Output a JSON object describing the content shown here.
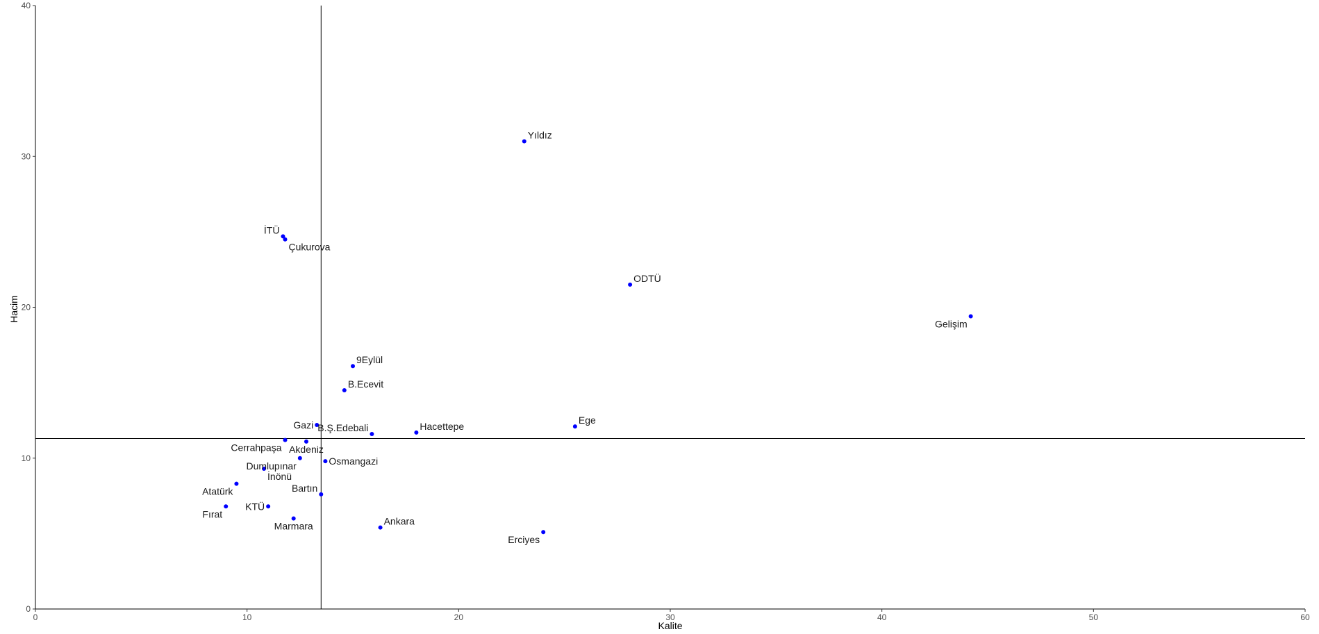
{
  "chart_data": {
    "type": "scatter",
    "title": "",
    "xlabel": "Kalite",
    "ylabel": "Hacim",
    "xlim": [
      0,
      60
    ],
    "ylim": [
      0,
      40
    ],
    "x_ticks": [
      0,
      10,
      20,
      30,
      40,
      50,
      60
    ],
    "y_ticks": [
      0,
      10,
      20,
      30,
      40
    ],
    "grid": false,
    "point_color": "#0000ff",
    "reference_lines": {
      "x": 13.5,
      "y": 11.3
    },
    "points": [
      {
        "label": "Yıldız",
        "x": 23.1,
        "y": 31.0,
        "anchor": "start",
        "pos": "above"
      },
      {
        "label": "İTÜ",
        "x": 11.7,
        "y": 24.7,
        "anchor": "end",
        "pos": "above"
      },
      {
        "label": "Çukurova",
        "x": 11.8,
        "y": 24.5,
        "anchor": "start",
        "pos": "below"
      },
      {
        "label": "ODTÜ",
        "x": 28.1,
        "y": 21.5,
        "anchor": "start",
        "pos": "above"
      },
      {
        "label": "Gelişim",
        "x": 44.2,
        "y": 19.4,
        "anchor": "end",
        "pos": "below"
      },
      {
        "label": "9Eylül",
        "x": 15.0,
        "y": 16.1,
        "anchor": "start",
        "pos": "above"
      },
      {
        "label": "B.Ecevit",
        "x": 14.6,
        "y": 14.5,
        "anchor": "start",
        "pos": "above"
      },
      {
        "label": "Gazi",
        "x": 13.3,
        "y": 12.2,
        "anchor": "end",
        "pos": "mid"
      },
      {
        "label": "B.Ş.Edebali",
        "x": 15.9,
        "y": 11.6,
        "anchor": "end",
        "pos": "above"
      },
      {
        "label": "Hacettepe",
        "x": 18.0,
        "y": 11.7,
        "anchor": "start",
        "pos": "above"
      },
      {
        "label": "Ege",
        "x": 25.5,
        "y": 12.1,
        "anchor": "start",
        "pos": "above"
      },
      {
        "label": "Cerrahpaşa",
        "x": 11.8,
        "y": 11.2,
        "anchor": "end",
        "pos": "below"
      },
      {
        "label": "Akdeniz",
        "x": 12.8,
        "y": 11.1,
        "anchor": "middle",
        "pos": "below"
      },
      {
        "label": "Dumlupınar",
        "x": 12.5,
        "y": 10.0,
        "anchor": "end",
        "pos": "below"
      },
      {
        "label": "İnönü",
        "x": 10.8,
        "y": 9.3,
        "anchor": "start",
        "pos": "below"
      },
      {
        "label": "Osmangazi",
        "x": 13.7,
        "y": 9.8,
        "anchor": "start",
        "pos": "mid"
      },
      {
        "label": "Atatürk",
        "x": 9.5,
        "y": 8.3,
        "anchor": "end",
        "pos": "below"
      },
      {
        "label": "Bartın",
        "x": 13.5,
        "y": 7.6,
        "anchor": "end",
        "pos": "above"
      },
      {
        "label": "KTÜ",
        "x": 11.0,
        "y": 6.8,
        "anchor": "end",
        "pos": "mid"
      },
      {
        "label": "Fırat",
        "x": 9.0,
        "y": 6.8,
        "anchor": "end",
        "pos": "below"
      },
      {
        "label": "Marmara",
        "x": 12.2,
        "y": 6.0,
        "anchor": "middle",
        "pos": "below"
      },
      {
        "label": "Ankara",
        "x": 16.3,
        "y": 5.4,
        "anchor": "start",
        "pos": "above"
      },
      {
        "label": "Erciyes",
        "x": 24.0,
        "y": 5.1,
        "anchor": "end",
        "pos": "below"
      }
    ]
  }
}
